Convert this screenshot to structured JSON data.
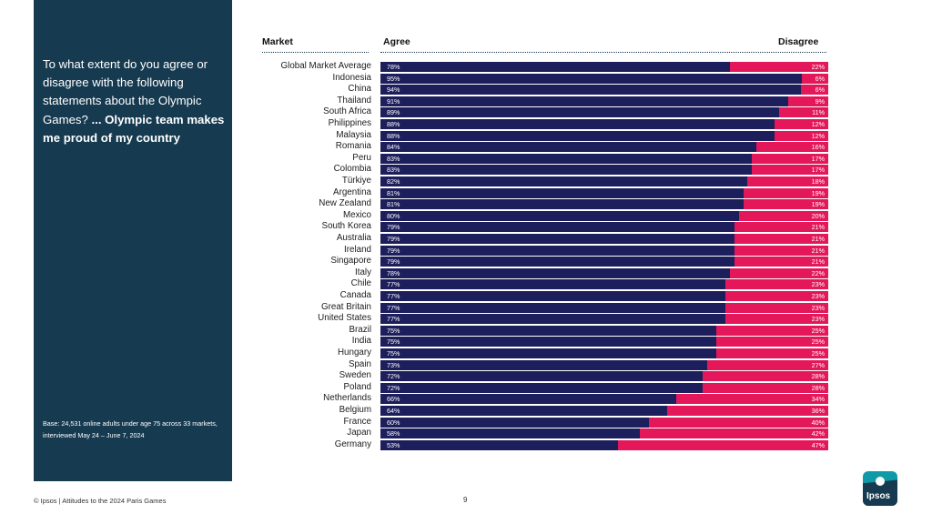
{
  "panel": {
    "question_plain": "To what extent do you agree or disagree with the following statements about the Olympic Games?",
    "question_bold": "... Olympic team makes me proud of my country",
    "base_note": "Base: 24,531 online adults under age 75 across 33 markets, interviewed May 24 – June 7, 2024"
  },
  "headers": {
    "market": "Market",
    "agree": "Agree",
    "disagree": "Disagree"
  },
  "footer": {
    "source": "© Ipsos | Attitudes to the 2024 Paris Games",
    "page_number": "9"
  },
  "logo_text": "Ipsos",
  "colors": {
    "agree": "#1d1e5c",
    "disagree": "#e3175a",
    "panel": "#163a50"
  },
  "chart_data": {
    "type": "bar",
    "orientation": "horizontal",
    "stacked": true,
    "categories": [
      "Global Market Average",
      "Indonesia",
      "China",
      "Thailand",
      "South Africa",
      "Philippines",
      "Malaysia",
      "Romania",
      "Peru",
      "Colombia",
      "Türkiye",
      "Argentina",
      "New Zealand",
      "Mexico",
      "South Korea",
      "Australia",
      "Ireland",
      "Singapore",
      "Italy",
      "Chile",
      "Canada",
      "Great Britain",
      "United States",
      "Brazil",
      "India",
      "Hungary",
      "Spain",
      "Sweden",
      "Poland",
      "Netherlands",
      "Belgium",
      "France",
      "Japan",
      "Germany"
    ],
    "series": [
      {
        "name": "Agree",
        "values": [
          78,
          95,
          94,
          91,
          89,
          88,
          88,
          84,
          83,
          83,
          82,
          81,
          81,
          80,
          79,
          79,
          79,
          79,
          78,
          77,
          77,
          77,
          77,
          75,
          75,
          75,
          73,
          72,
          72,
          66,
          64,
          60,
          58,
          53
        ]
      },
      {
        "name": "Disagree",
        "values": [
          22,
          6,
          6,
          9,
          11,
          12,
          12,
          16,
          17,
          17,
          18,
          19,
          19,
          20,
          21,
          21,
          21,
          21,
          22,
          23,
          23,
          23,
          23,
          25,
          25,
          25,
          27,
          28,
          28,
          34,
          36,
          40,
          42,
          47
        ]
      }
    ],
    "value_suffix": "%",
    "xlim": [
      0,
      100
    ]
  }
}
